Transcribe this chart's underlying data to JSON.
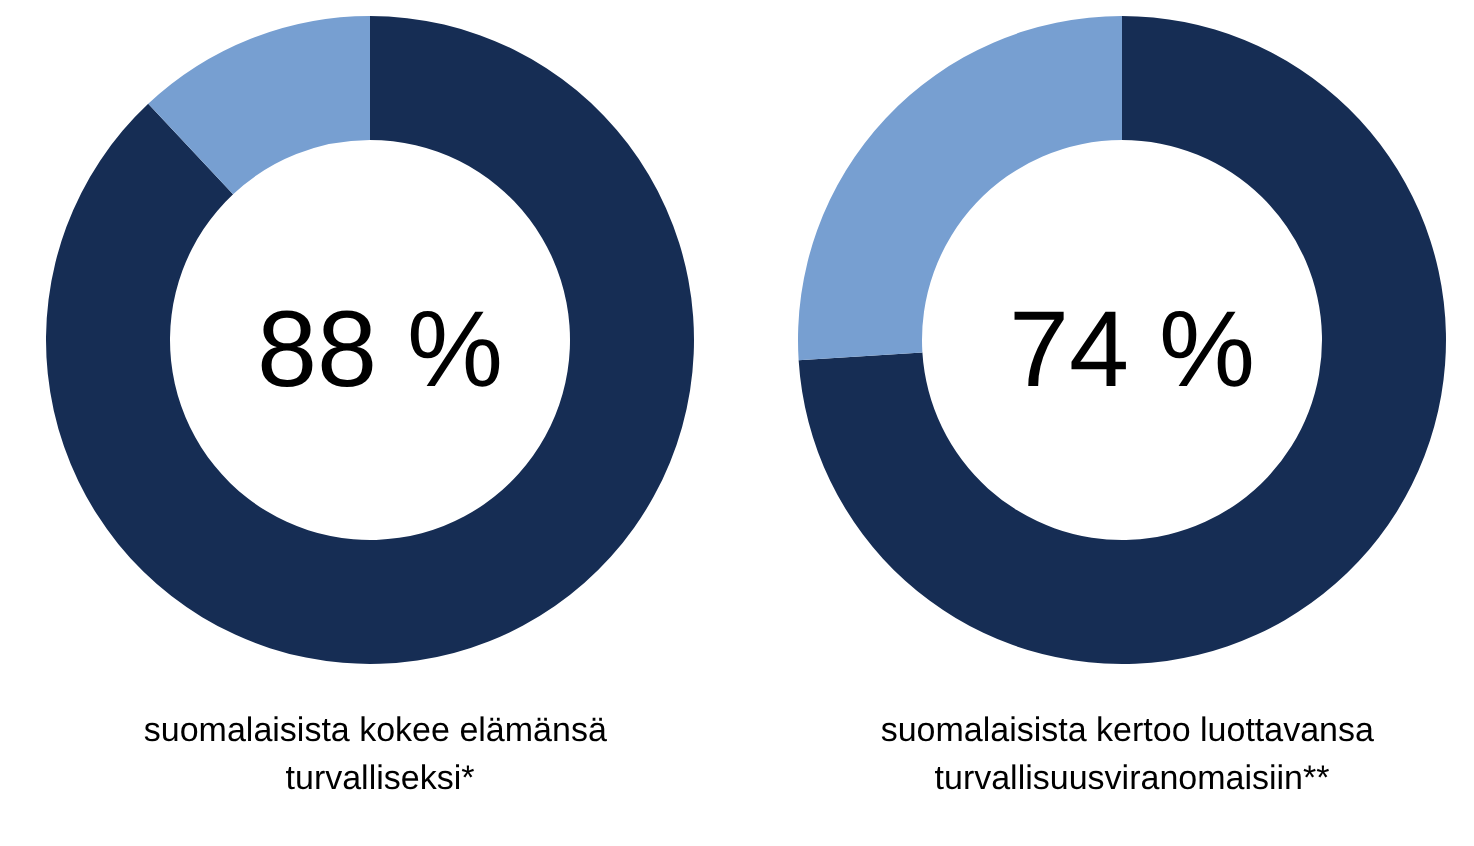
{
  "chart_data": [
    {
      "type": "donut",
      "title": "suomalaisista kokee elämänsä turvalliseksi*",
      "categories": [
        null,
        null
      ],
      "values": [
        88,
        12
      ],
      "colors": [
        "#162d54",
        "#779fd1"
      ],
      "value_labels": [
        "88 %",
        null
      ]
    },
    {
      "type": "donut",
      "title": "suomalaisista kertoo luottavansa turvallisuusviranomaisiin**",
      "categories": [
        null,
        null
      ],
      "values": [
        74,
        26
      ],
      "colors": [
        "#162d54",
        "#779fd1"
      ],
      "value_labels": [
        "74 %",
        null
      ]
    }
  ]
}
